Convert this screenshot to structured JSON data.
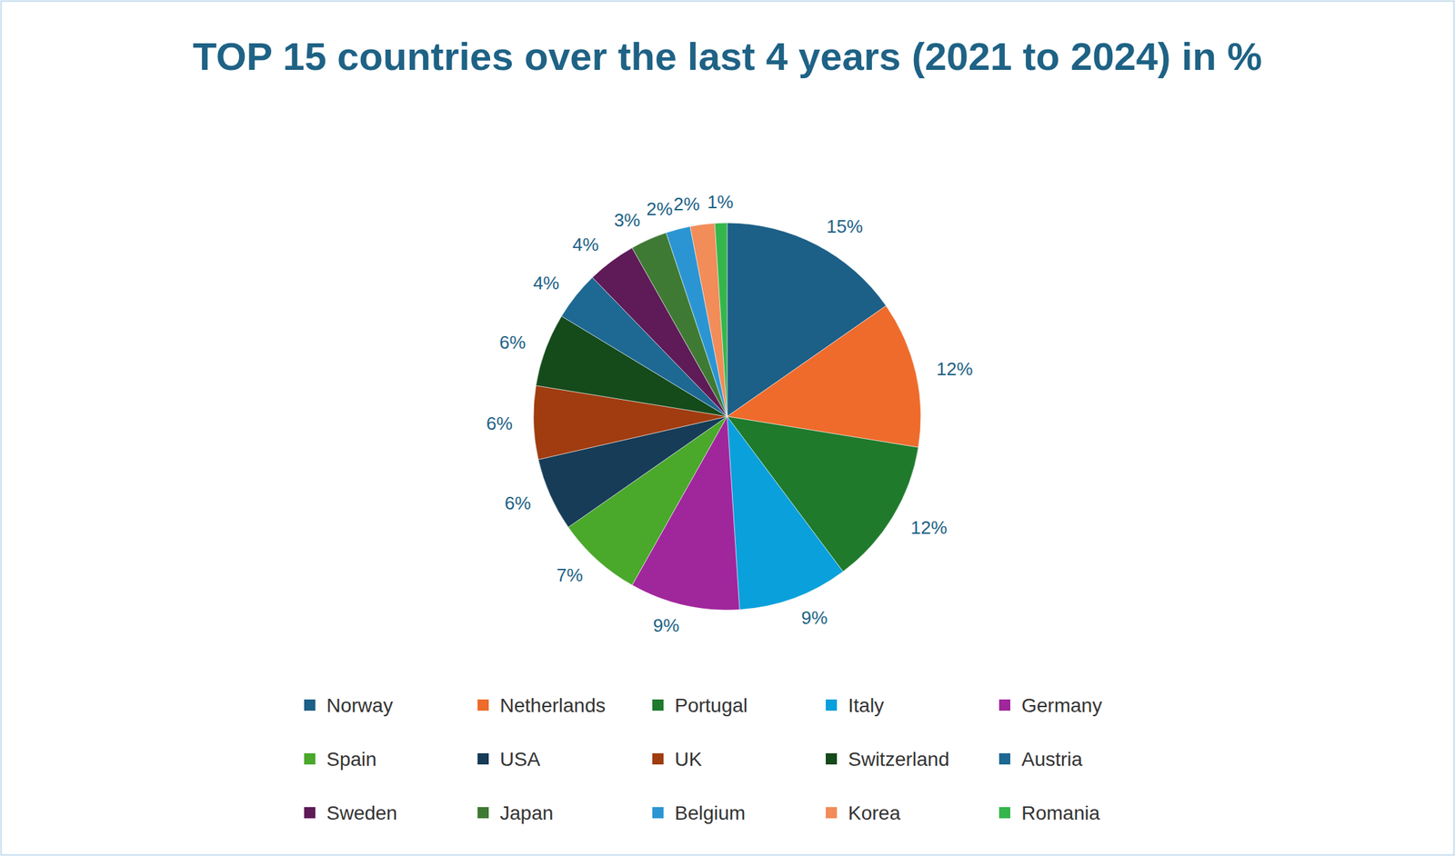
{
  "chart_data": {
    "type": "pie",
    "title": "TOP 15 countries over the last 4 years (2021 to 2024) in %",
    "categories": [
      "Norway",
      "Netherlands",
      "Portugal",
      "Italy",
      "Germany",
      "Spain",
      "USA",
      "UK",
      "Switzerland",
      "Austria",
      "Sweden",
      "Japan",
      "Belgium",
      "Korea",
      "Romania"
    ],
    "values": [
      15,
      12,
      12,
      9,
      9,
      7,
      6,
      6,
      6,
      4,
      4,
      3,
      2,
      2,
      1
    ],
    "value_labels": [
      "15%",
      "12%",
      "12%",
      "9%",
      "9%",
      "7%",
      "6%",
      "6%",
      "6%",
      "4%",
      "4%",
      "3%",
      "2%",
      "2%",
      "1%"
    ],
    "colors": [
      "#1c5f87",
      "#ee6b2b",
      "#1f7a2c",
      "#0aa0dc",
      "#a0269c",
      "#4aa82b",
      "#163c57",
      "#a03c10",
      "#154a1b",
      "#1d6993",
      "#5e1b57",
      "#3f7a34",
      "#2b95d3",
      "#f28c59",
      "#34b64b"
    ],
    "data_labels": true,
    "legend": "bottom"
  }
}
